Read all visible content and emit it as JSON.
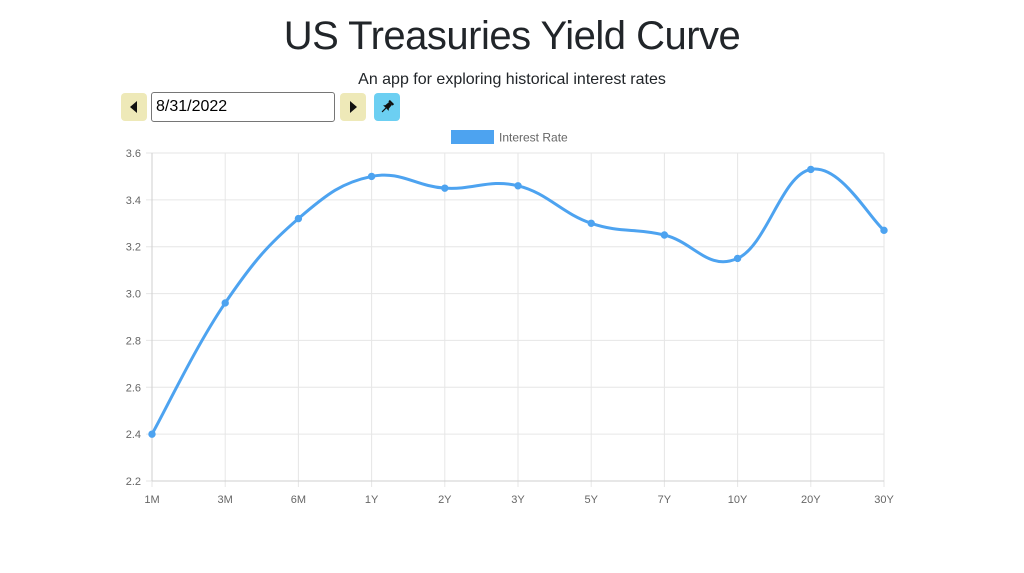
{
  "header": {
    "title": "US Treasuries Yield Curve",
    "subtitle": "An app for exploring historical interest rates"
  },
  "controls": {
    "date_value": "8/31/2022",
    "prev_icon": "caret-left-icon",
    "next_icon": "caret-right-icon",
    "pin_icon": "pushpin-icon"
  },
  "colors": {
    "line": "#4da3f0",
    "nav_button": "#eee9b8",
    "pin_button": "#6ccff2",
    "grid": "#e6e6e6"
  },
  "chart_data": {
    "type": "line",
    "categories": [
      "1M",
      "3M",
      "6M",
      "1Y",
      "2Y",
      "3Y",
      "5Y",
      "7Y",
      "10Y",
      "20Y",
      "30Y"
    ],
    "series": [
      {
        "name": "Interest Rate",
        "values": [
          2.4,
          2.96,
          3.32,
          3.5,
          3.45,
          3.46,
          3.3,
          3.25,
          3.15,
          3.53,
          3.27
        ]
      }
    ],
    "ylim": [
      2.2,
      3.6
    ],
    "yticks": [
      "2.2",
      "2.4",
      "2.6",
      "2.8",
      "3.0",
      "3.2",
      "3.4",
      "3.6"
    ],
    "grid": true,
    "legend_position": "top-center",
    "curve": "smooth"
  }
}
